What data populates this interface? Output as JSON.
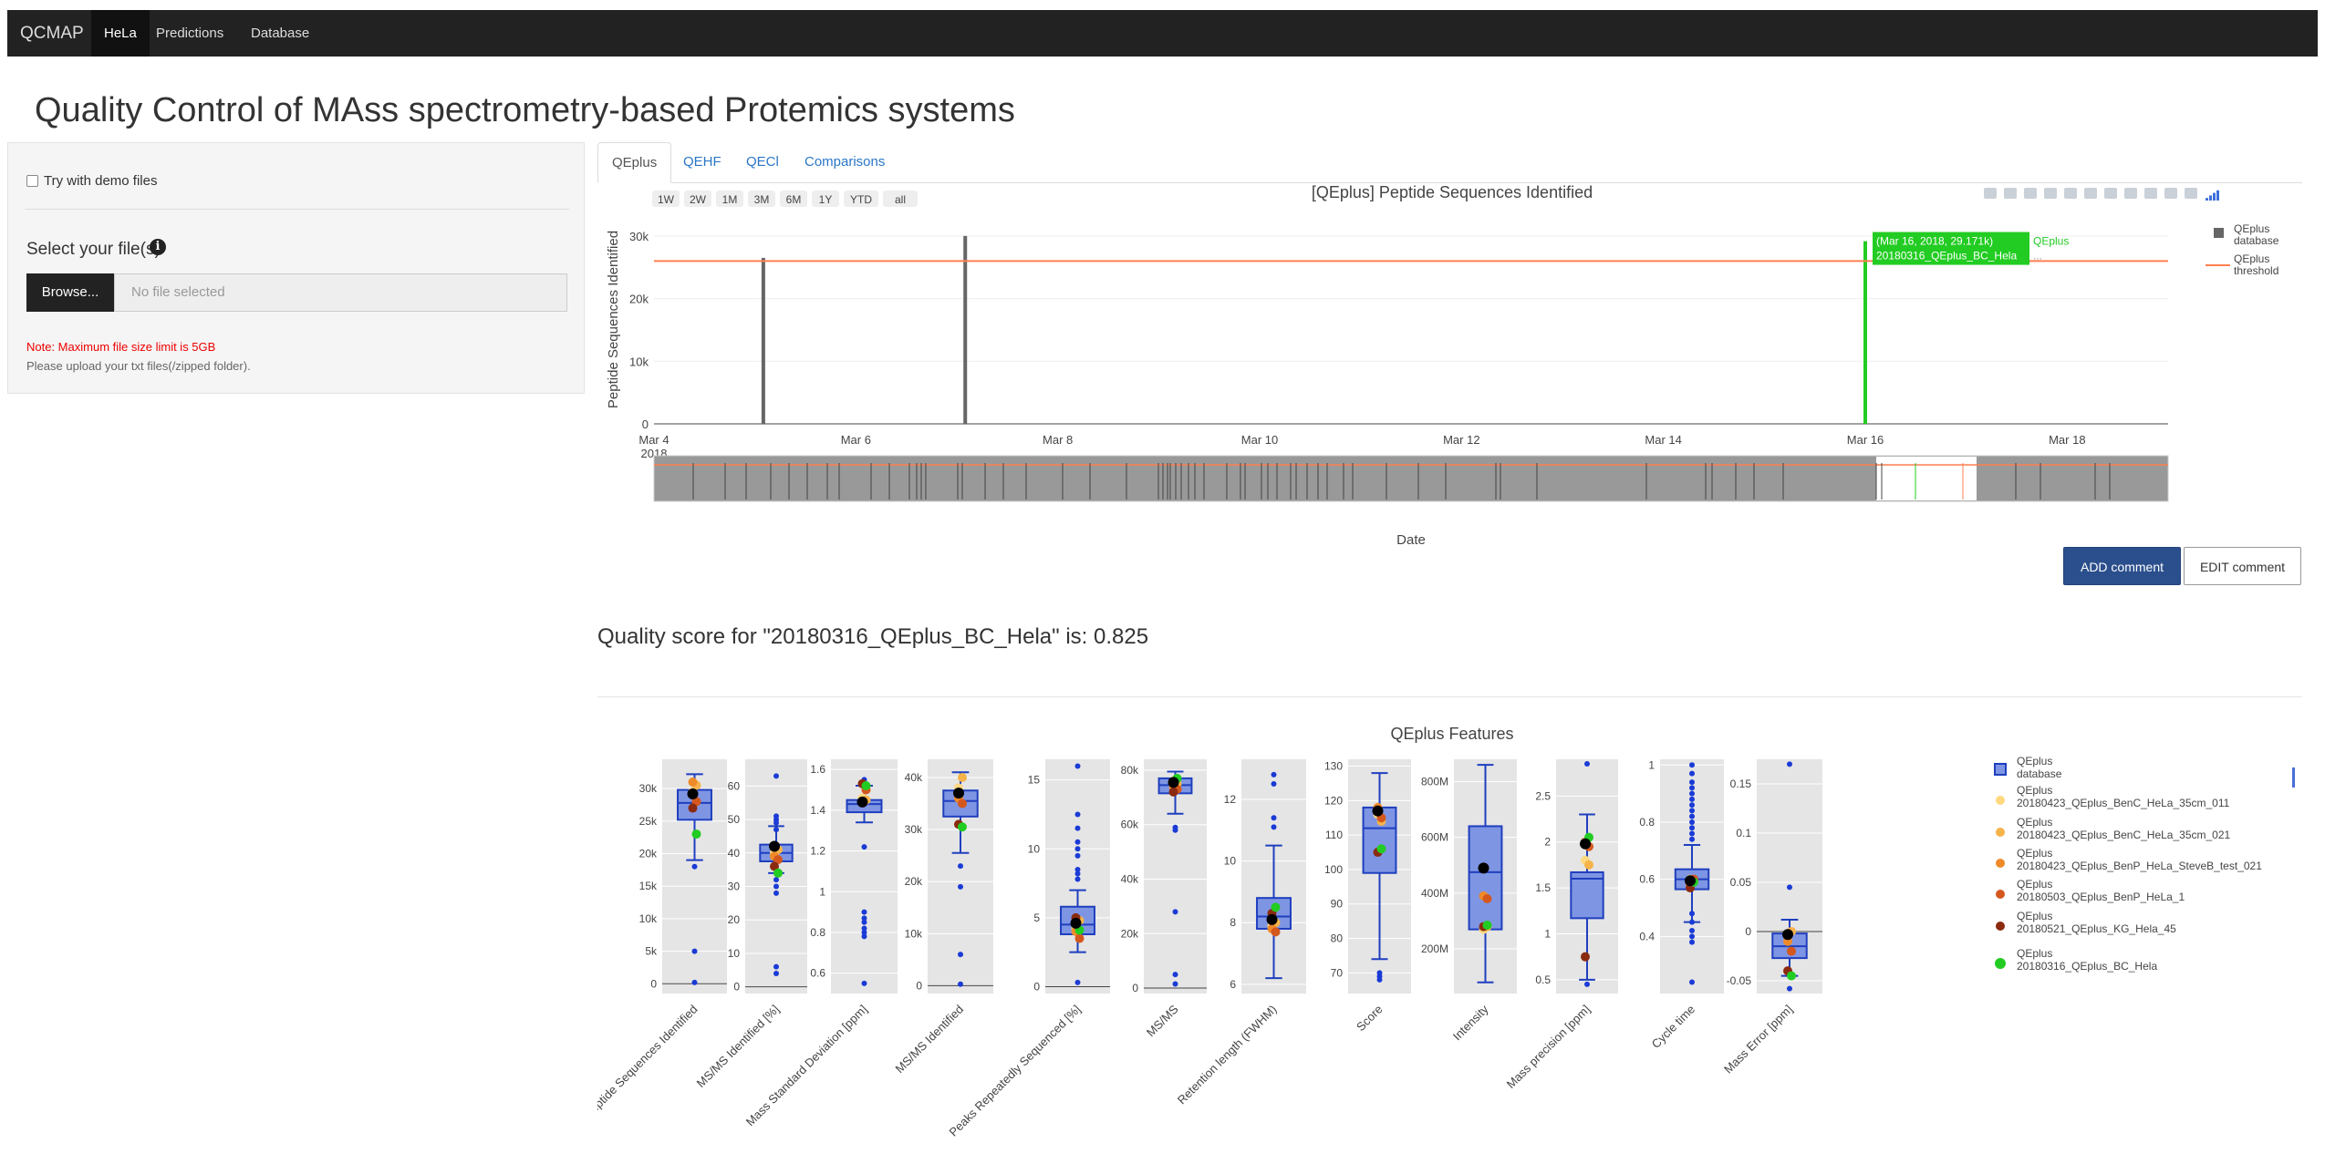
{
  "navbar": {
    "brand": "QCMAP",
    "items": [
      "HeLa",
      "Predictions",
      "Database"
    ],
    "active": "HeLa"
  },
  "page_title": "Quality Control of MAss spectrometry-based Protemics systems",
  "sidebar": {
    "demo_label": "Try with demo files",
    "select_label": "Select your file(s)",
    "browse_label": "Browse...",
    "file_placeholder": "No file selected",
    "note": "Note: Maximum file size limit is 5GB",
    "upload_hint": "Please upload your txt files(/zipped folder)."
  },
  "tabs": [
    "QEplus",
    "QEHF",
    "QECl",
    "Comparisons"
  ],
  "active_tab": "QEplus",
  "time_chart": {
    "title": "[QEplus] Peptide Sequences Identified",
    "range_buttons": [
      "1W",
      "2W",
      "1M",
      "3M",
      "6M",
      "1Y",
      "YTD",
      "all"
    ],
    "hover_line1": "(Mar 16, 2018, 29.171k)",
    "hover_line2": "20180316_QEplus_BC_Hela",
    "hover_series": "QEplus",
    "hover_more": "...",
    "toolbar_icons": [
      "camera-icon",
      "zoom-icon",
      "pan-icon",
      "zoom-in-icon",
      "zoom-out-icon",
      "autoscale-icon",
      "reset-icon",
      "spike-icon",
      "compare-icon",
      "closest-icon",
      "toggle-icon",
      "plotly-logo-icon"
    ]
  },
  "buttons": {
    "add_comment": "ADD comment",
    "edit_comment": "EDIT comment"
  },
  "quality_text": "Quality score for \"20180316_QEplus_BC_Hela\" is: 0.825",
  "features": {
    "title": "QEplus Features"
  },
  "chart_data": [
    {
      "type": "bar",
      "title": "[QEplus] Peptide Sequences Identified",
      "xlabel": "Date",
      "ylabel": "Peptide Sequences Identified",
      "x_ticks": [
        "Mar 4\n2018",
        "Mar 6",
        "Mar 8",
        "Mar 10",
        "Mar 12",
        "Mar 14",
        "Mar 16",
        "Mar 18"
      ],
      "y_ticks": [
        "0",
        "10k",
        "20k",
        "30k"
      ],
      "ylim": [
        0,
        31000
      ],
      "xlim": [
        "2018-03-04",
        "2018-03-19T00:00"
      ],
      "series": [
        {
          "name": "QEplus database",
          "color": "#666666",
          "x": [
            "2018-03-05T02:00",
            "2018-03-07T02:00"
          ],
          "values": [
            26500,
            30000
          ]
        },
        {
          "name": "QEplus threshold",
          "color": "#ff7f50",
          "threshold": 26000
        },
        {
          "name": "QEplus",
          "color": "#22cc22",
          "x": [
            "2018-03-16T00:00"
          ],
          "values": [
            29171
          ]
        }
      ],
      "legend_position": "right"
    },
    {
      "type": "box",
      "title": "QEplus Features",
      "legend_position": "right",
      "legend": [
        {
          "name": "QEplus\ndatabase",
          "color": "#6a8be0"
        },
        {
          "name": "QEplus\n20180423_QEplus_BenC_HeLa_35cm_011",
          "color": "#ffd880"
        },
        {
          "name": "QEplus\n20180423_QEplus_BenC_HeLa_35cm_021",
          "color": "#f5b34a"
        },
        {
          "name": "QEplus\n20180423_QEplus_BenP_HeLa_SteveB_test_021",
          "color": "#ef8a2a"
        },
        {
          "name": "QEplus\n20180503_QEplus_BenP_HeLa_1",
          "color": "#d4581e"
        },
        {
          "name": "QEplus\n20180521_QEplus_KG_Hela_45",
          "color": "#8a2a10"
        },
        {
          "name": "QEplus\n20180316_QEplus_BC_Hela",
          "color": "#22cc22"
        }
      ],
      "panels": [
        {
          "label": "Peptide Sequences Identified",
          "ticks": [
            "0",
            "5k",
            "10k",
            "15k",
            "20k",
            "25k",
            "30k"
          ],
          "ylim": [
            -1500,
            34500
          ],
          "box": {
            "min": 19000,
            "q1": 25200,
            "median": 27800,
            "q3": 29800,
            "max": 32200
          },
          "outliers": [
            18000,
            5000,
            200
          ],
          "runs": [
            29500,
            30500,
            31000,
            28000,
            27000,
            23000,
            29171
          ]
        },
        {
          "label": "MS/MS Identified [%]",
          "ticks": [
            "0",
            "10",
            "20",
            "30",
            "40",
            "50",
            "60"
          ],
          "ylim": [
            -2,
            68
          ],
          "box": {
            "min": 34,
            "q1": 37.5,
            "median": 40,
            "q3": 42.5,
            "max": 48
          },
          "outliers": [
            63,
            51,
            50,
            49,
            47,
            32,
            30,
            28,
            6,
            4
          ],
          "runs": [
            40,
            41,
            39,
            38,
            36,
            34,
            42
          ]
        },
        {
          "label": "Mass Standard Deviation [ppm]",
          "ticks": [
            "0.6",
            "0.8",
            "1",
            "1.2",
            "1.4",
            "1.6"
          ],
          "ylim": [
            0.5,
            1.65
          ],
          "box": {
            "min": 1.34,
            "q1": 1.39,
            "median": 1.43,
            "q3": 1.45,
            "max": 1.52
          },
          "outliers": [
            1.55,
            1.22,
            0.9,
            0.87,
            0.85,
            0.82,
            0.8,
            0.78,
            0.55
          ],
          "runs": [
            1.46,
            1.45,
            1.44,
            1.5,
            1.53,
            1.52,
            1.44
          ]
        },
        {
          "label": "MS/MS Identified",
          "ticks": [
            "0",
            "10k",
            "20k",
            "30k",
            "40k"
          ],
          "ylim": [
            -1500,
            43500
          ],
          "box": {
            "min": 25500,
            "q1": 32500,
            "median": 35500,
            "q3": 37500,
            "max": 41000
          },
          "outliers": [
            23000,
            19000,
            6000,
            300
          ],
          "runs": [
            38000,
            40000,
            36000,
            35000,
            31000,
            30500,
            37000
          ]
        },
        {
          "label": "Peaks Repeatedly Sequenced [%]",
          "ticks": [
            "0",
            "5",
            "10",
            "15"
          ],
          "ylim": [
            -0.5,
            16.5
          ],
          "box": {
            "min": 2.5,
            "q1": 3.8,
            "median": 4.5,
            "q3": 5.8,
            "max": 7
          },
          "outliers": [
            16,
            12.5,
            11.5,
            10.5,
            10,
            9.5,
            8.5,
            8.2,
            7.8,
            0.3
          ],
          "runs": [
            4.2,
            4.8,
            4,
            3.5,
            5,
            4.1,
            4.6
          ]
        },
        {
          "label": "MS/MS",
          "ticks": [
            "0",
            "20k",
            "40k",
            "60k",
            "80k"
          ],
          "ylim": [
            -2000,
            84000
          ],
          "box": {
            "min": 64000,
            "q1": 71500,
            "median": 74500,
            "q3": 77000,
            "max": 79500
          },
          "outliers": [
            59000,
            58000,
            28000,
            5000,
            1500
          ],
          "runs": [
            76000,
            75000,
            74000,
            73000,
            72000,
            77000,
            75500
          ]
        },
        {
          "label": "Retention length (FWHM)",
          "ticks": [
            "6",
            "8",
            "10",
            "12"
          ],
          "ylim": [
            5.7,
            13.3
          ],
          "box": {
            "min": 6.2,
            "q1": 7.8,
            "median": 8.2,
            "q3": 8.8,
            "max": 10.5
          },
          "outliers": [
            12.8,
            12.5,
            11.4,
            11.1
          ],
          "runs": [
            7.9,
            8,
            7.8,
            7.7,
            8.3,
            8.5,
            8.1
          ]
        },
        {
          "label": "Score",
          "ticks": [
            "70",
            "80",
            "90",
            "100",
            "110",
            "120",
            "130"
          ],
          "ylim": [
            64,
            132
          ],
          "box": {
            "min": 74,
            "q1": 99,
            "median": 112,
            "q3": 118,
            "max": 128
          },
          "outliers": [
            70,
            69,
            68
          ],
          "runs": [
            116,
            114,
            118,
            115,
            105,
            106,
            117
          ]
        },
        {
          "label": "Intensity",
          "ticks": [
            "200M",
            "400M",
            "600M",
            "800M"
          ],
          "ylim": [
            40000000,
            880000000
          ],
          "box": {
            "min": 80000000,
            "q1": 270000000,
            "median": 475000000,
            "q3": 640000000,
            "max": 860000000
          },
          "outliers": [],
          "runs": [
            270000000,
            280000000,
            390000000,
            380000000,
            280000000,
            285000000,
            490000000
          ]
        },
        {
          "label": "Mass precision [ppm]",
          "ticks": [
            "0.5",
            "1",
            "1.5",
            "2",
            "2.5"
          ],
          "ylim": [
            0.35,
            2.9
          ],
          "box": {
            "min": 0.5,
            "q1": 1.17,
            "median": 1.6,
            "q3": 1.67,
            "max": 2.3
          },
          "outliers": [
            2.85,
            0.45
          ],
          "runs": [
            1.8,
            1.75,
            2.0,
            1.95,
            0.75,
            2.05,
            1.98
          ]
        },
        {
          "label": "Cycle time",
          "ticks": [
            "0.4",
            "0.6",
            "0.8",
            "1"
          ],
          "ylim": [
            0.2,
            1.02
          ],
          "box": {
            "min": 0.45,
            "q1": 0.565,
            "median": 0.6,
            "q3": 0.635,
            "max": 0.72
          },
          "outliers": [
            1.0,
            0.97,
            0.94,
            0.92,
            0.9,
            0.88,
            0.86,
            0.84,
            0.82,
            0.8,
            0.78,
            0.76,
            0.74,
            0.48,
            0.45,
            0.42,
            0.4,
            0.38,
            0.24
          ],
          "runs": [
            0.6,
            0.59,
            0.58,
            0.6,
            0.57,
            0.59,
            0.595
          ]
        },
        {
          "label": "Mass Error [ppm]",
          "ticks": [
            "-0.05",
            "0",
            "0.05",
            "0.1",
            "0.15"
          ],
          "ylim": [
            -0.063,
            0.175
          ],
          "box": {
            "min": -0.045,
            "q1": -0.027,
            "median": -0.015,
            "q3": -0.002,
            "max": 0.012
          },
          "outliers": [
            0.17,
            0.045,
            -0.058
          ],
          "runs": [
            -0.005,
            0.0,
            -0.01,
            -0.02,
            -0.04,
            -0.045,
            -0.003
          ]
        }
      ]
    }
  ]
}
